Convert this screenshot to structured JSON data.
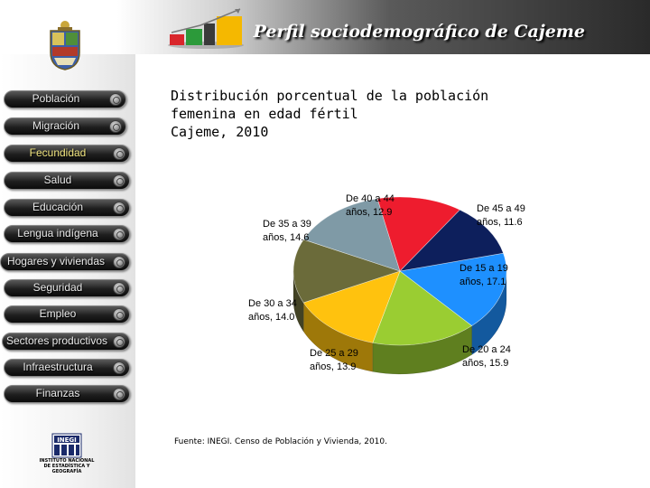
{
  "header": {
    "title": "Perfil sociodemográfico de Cajeme"
  },
  "nav": {
    "items": [
      {
        "label": "Población",
        "active": false
      },
      {
        "label": "Migración",
        "active": false
      },
      {
        "label": "Fecundidad",
        "active": true
      },
      {
        "label": "Salud",
        "active": false
      },
      {
        "label": "Educación",
        "active": false
      },
      {
        "label": "Lengua indígena",
        "active": false
      },
      {
        "label": "Hogares y viviendas",
        "active": false
      },
      {
        "label": "Seguridad",
        "active": false
      },
      {
        "label": "Empleo",
        "active": false
      },
      {
        "label": "Sectores productivos",
        "active": false
      },
      {
        "label": "Infraestructura",
        "active": false
      },
      {
        "label": "Finanzas",
        "active": false
      }
    ]
  },
  "chart_title": {
    "line1": "Distribución porcentual de la población",
    "line2": "femenina en edad fértil",
    "line3": "Cajeme, 2010"
  },
  "chart_data": {
    "type": "pie",
    "title": "Distribución porcentual de la población femenina en edad fértil Cajeme, 2010",
    "slices": [
      {
        "label_line1": "De 15 a 19",
        "label_line2": "años, 17.1",
        "category": "De 15 a 19 años",
        "value": 17.1,
        "color": "#1e90ff"
      },
      {
        "label_line1": "De 20 a 24",
        "label_line2": "años, 15.9",
        "category": "De 20 a 24 años",
        "value": 15.9,
        "color": "#9acd32"
      },
      {
        "label_line1": "De 25 a 29",
        "label_line2": "años, 13.9",
        "category": "De 25 a 29 años",
        "value": 13.9,
        "color": "#ffc20e"
      },
      {
        "label_line1": "De 30 a 34",
        "label_line2": "años, 14.0",
        "category": "De 30 a 34 años",
        "value": 14.0,
        "color": "#6b6b3a"
      },
      {
        "label_line1": "De 35 a 39",
        "label_line2": "años, 14.6",
        "category": "De 35 a 39 años",
        "value": 14.6,
        "color": "#7f9aa6"
      },
      {
        "label_line1": "De 40 a 44",
        "label_line2": "años, 12.9",
        "category": "De 40 a 44 años",
        "value": 12.9,
        "color": "#ee1c2e"
      },
      {
        "label_line1": "De 45 a 49",
        "label_line2": "años, 11.6",
        "category": "De 45 a 49 años",
        "value": 11.6,
        "color": "#0d1f5c"
      }
    ]
  },
  "source": "Fuente: INEGI. Censo de Población y Vivienda, 2010.",
  "logo": {
    "name": "INEGI",
    "line1": "INSTITUTO NACIONAL",
    "line2": "DE ESTADÍSTICA Y GEOGRAFÍA"
  }
}
